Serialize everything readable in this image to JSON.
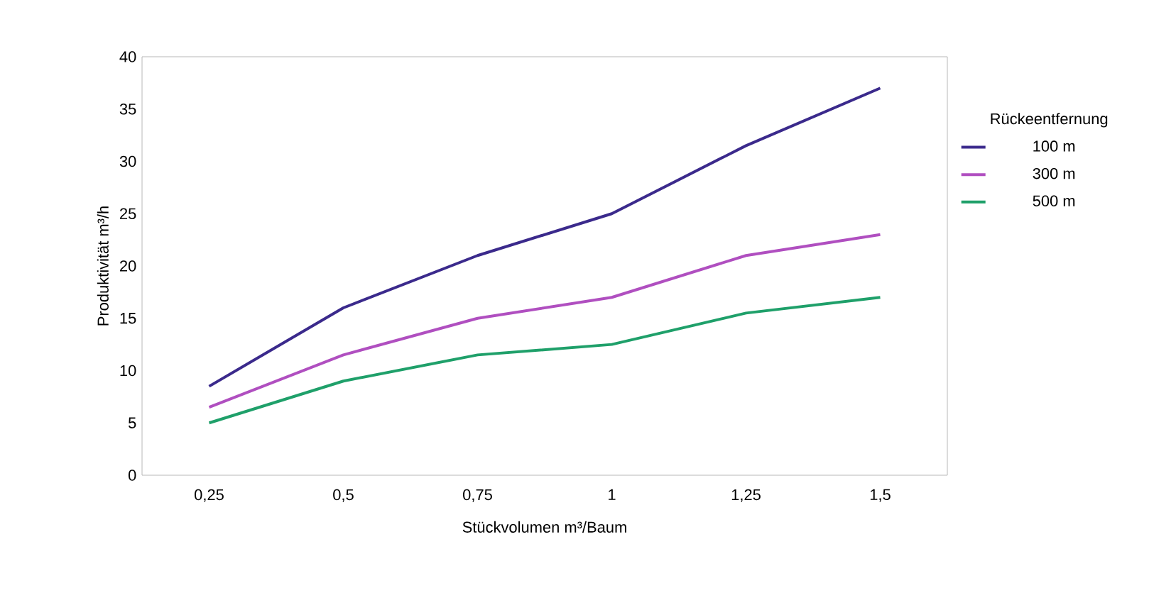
{
  "chart_data": {
    "type": "line",
    "xlabel": "Stückvolumen  m³/Baum",
    "ylabel": "Produktivität  m³/h",
    "legend_title": "Rückeentfernung",
    "categories": [
      "0,25",
      "0,5",
      "0,75",
      "1",
      "1,25",
      "1,5"
    ],
    "series": [
      {
        "name": "100 m",
        "color": "#3b2a8c",
        "values": [
          8.5,
          16,
          21,
          25,
          31.5,
          37
        ]
      },
      {
        "name": "300 m",
        "color": "#b04fc0",
        "values": [
          6.5,
          11.5,
          15,
          17,
          21,
          23
        ]
      },
      {
        "name": "500 m",
        "color": "#1fa06a",
        "values": [
          5,
          9,
          11.5,
          12.5,
          15.5,
          17
        ]
      }
    ],
    "ylim": [
      0,
      40
    ],
    "yticks": [
      0,
      5,
      10,
      15,
      20,
      25,
      30,
      35,
      40
    ],
    "grid": false,
    "legend": "right",
    "marker": "none",
    "line_style": "solid"
  }
}
